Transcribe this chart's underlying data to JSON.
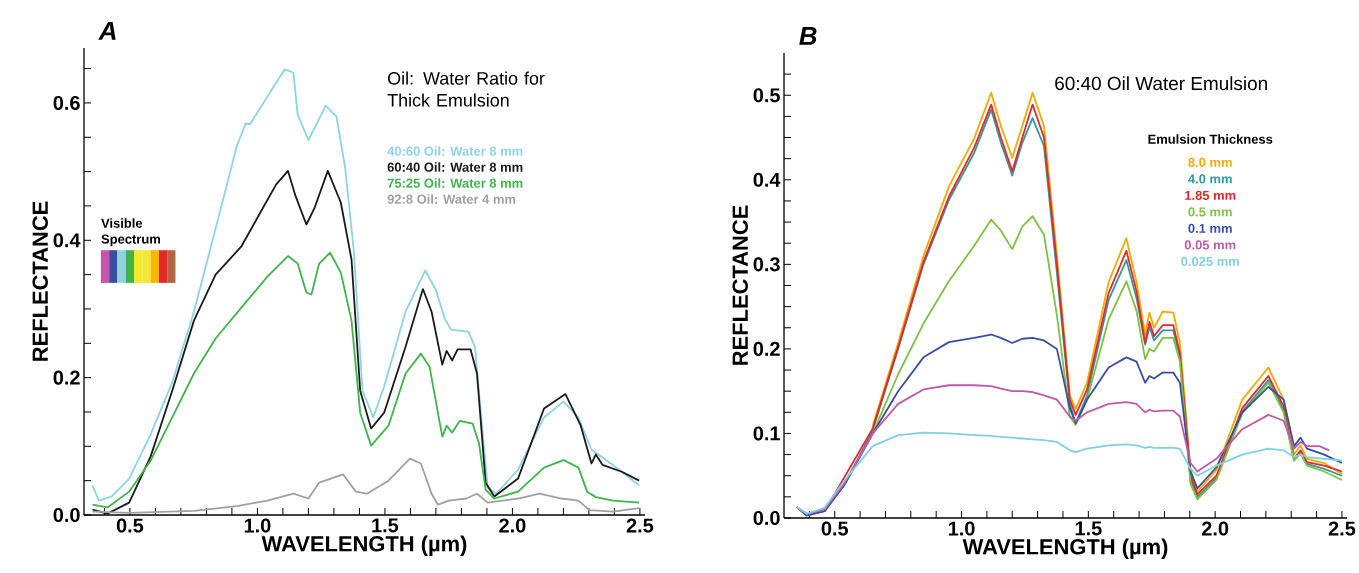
{
  "chart_data": [
    {
      "type": "line",
      "title": "A",
      "xlabel": "WAVELENGTH (µm)",
      "ylabel": "REFLECTANCE",
      "legend_title": "Oil: Water Ratio for Thick Emulsion",
      "legend": "top right",
      "line_style": "solid",
      "annotations": [
        "Visible Spectrum"
      ],
      "xlim": [
        0.32,
        2.52
      ],
      "ylim": [
        0,
        0.68
      ],
      "xticks": [
        {
          "value": 0.4,
          "label": null
        },
        0.5,
        {
          "value": 0.6,
          "label": null
        },
        {
          "value": 0.7,
          "label": null
        },
        {
          "value": 0.8,
          "label": null
        },
        {
          "value": 0.9,
          "label": null
        },
        {
          "value": 1.0,
          "label": "1.0"
        },
        {
          "value": 1.1,
          "label": null
        },
        {
          "value": 1.2,
          "label": null
        },
        {
          "value": 1.3,
          "label": null
        },
        {
          "value": 1.4,
          "label": null
        },
        1.5,
        {
          "value": 1.6,
          "label": null
        },
        {
          "value": 1.7,
          "label": null
        },
        {
          "value": 1.8,
          "label": null
        },
        {
          "value": 1.9,
          "label": null
        },
        {
          "value": 2.0,
          "label": "2.0"
        },
        {
          "value": 2.1,
          "label": null
        },
        {
          "value": 2.2,
          "label": null
        },
        {
          "value": 2.3,
          "label": null
        },
        {
          "value": 2.4,
          "label": null
        },
        2.5
      ],
      "yticks": [
        {
          "value": 0,
          "label": "0.0"
        },
        {
          "value": 0.05,
          "label": null
        },
        {
          "value": 0.1,
          "label": null
        },
        {
          "value": 0.15,
          "label": null
        },
        0.2,
        {
          "value": 0.25,
          "label": null
        },
        {
          "value": 0.3,
          "label": null
        },
        {
          "value": 0.35,
          "label": null
        },
        0.4,
        {
          "value": 0.45,
          "label": null
        },
        {
          "value": 0.5,
          "label": null
        },
        {
          "value": 0.55,
          "label": null
        },
        0.6,
        {
          "value": 0.65,
          "label": null
        }
      ],
      "series": [
        {
          "name": "40:60 Oil: Water 8 mm",
          "color": "#8ed3e3",
          "x": [
            0.353,
            0.378,
            0.429,
            0.497,
            0.581,
            0.666,
            0.751,
            0.836,
            0.92,
            0.954,
            0.971,
            1.039,
            1.107,
            1.141,
            1.158,
            1.2,
            1.225,
            1.268,
            1.31,
            1.344,
            1.378,
            1.412,
            1.454,
            1.497,
            1.581,
            1.658,
            1.7,
            1.734,
            1.759,
            1.827,
            1.853,
            1.903,
            1.937,
            2.022,
            2.124,
            2.2,
            2.259,
            2.31,
            2.361,
            2.429,
            2.497
          ],
          "values": [
            0.043,
            0.021,
            0.027,
            0.053,
            0.117,
            0.193,
            0.296,
            0.417,
            0.538,
            0.57,
            0.569,
            0.609,
            0.649,
            0.644,
            0.583,
            0.546,
            0.564,
            0.596,
            0.58,
            0.506,
            0.385,
            0.181,
            0.142,
            0.187,
            0.296,
            0.356,
            0.328,
            0.286,
            0.27,
            0.267,
            0.245,
            0.04,
            0.031,
            0.066,
            0.142,
            0.165,
            0.142,
            0.095,
            0.082,
            0.063,
            0.043
          ]
        },
        {
          "name": "60:40 Oil: Water 8 mm",
          "color": "#1a1a1a",
          "x": [
            0.353,
            0.412,
            0.497,
            0.581,
            0.666,
            0.751,
            0.836,
            0.937,
            1.005,
            1.073,
            1.12,
            1.149,
            1.192,
            1.225,
            1.276,
            1.327,
            1.369,
            1.403,
            1.446,
            1.497,
            1.581,
            1.649,
            1.683,
            1.725,
            1.742,
            1.764,
            1.785,
            1.836,
            1.861,
            1.895,
            1.929,
            2.022,
            2.124,
            2.208,
            2.268,
            2.31,
            2.327,
            2.353,
            2.429,
            2.497
          ],
          "values": [
            0.008,
            0.002,
            0.018,
            0.085,
            0.181,
            0.283,
            0.35,
            0.391,
            0.436,
            0.481,
            0.501,
            0.465,
            0.423,
            0.448,
            0.501,
            0.455,
            0.372,
            0.181,
            0.126,
            0.149,
            0.245,
            0.329,
            0.296,
            0.219,
            0.239,
            0.225,
            0.241,
            0.241,
            0.206,
            0.047,
            0.027,
            0.053,
            0.155,
            0.176,
            0.13,
            0.075,
            0.088,
            0.073,
            0.063,
            0.05
          ]
        },
        {
          "name": "75:25 Oil: Water 8 mm",
          "color": "#3db54a",
          "x": [
            0.353,
            0.412,
            0.497,
            0.581,
            0.666,
            0.751,
            0.836,
            0.937,
            1.039,
            1.12,
            1.158,
            1.192,
            1.212,
            1.242,
            1.285,
            1.327,
            1.369,
            1.403,
            1.446,
            1.514,
            1.581,
            1.641,
            1.675,
            1.725,
            1.742,
            1.764,
            1.793,
            1.844,
            1.869,
            1.895,
            1.929,
            2.022,
            2.124,
            2.2,
            2.259,
            2.293,
            2.327,
            2.395,
            2.497
          ],
          "values": [
            0.015,
            0.011,
            0.034,
            0.079,
            0.142,
            0.206,
            0.257,
            0.302,
            0.347,
            0.377,
            0.366,
            0.324,
            0.321,
            0.366,
            0.382,
            0.353,
            0.283,
            0.149,
            0.101,
            0.13,
            0.206,
            0.235,
            0.216,
            0.114,
            0.13,
            0.12,
            0.137,
            0.133,
            0.104,
            0.037,
            0.024,
            0.034,
            0.069,
            0.08,
            0.069,
            0.034,
            0.026,
            0.021,
            0.018
          ]
        },
        {
          "name": "92:8 Oil: Water 4 mm",
          "color": "#a0a0a0",
          "x": [
            0.353,
            0.497,
            0.751,
            0.92,
            1.039,
            1.141,
            1.2,
            1.242,
            1.336,
            1.386,
            1.429,
            1.514,
            1.598,
            1.641,
            1.683,
            1.708,
            1.751,
            1.819,
            1.861,
            1.903,
            2.022,
            2.107,
            2.192,
            2.259,
            2.302,
            2.395,
            2.497
          ],
          "values": [
            0.005,
            0.003,
            0.006,
            0.013,
            0.021,
            0.031,
            0.024,
            0.047,
            0.059,
            0.034,
            0.031,
            0.05,
            0.082,
            0.075,
            0.031,
            0.015,
            0.021,
            0.024,
            0.031,
            0.018,
            0.024,
            0.031,
            0.024,
            0.021,
            0.007,
            0.005,
            0.01
          ]
        }
      ]
    },
    {
      "type": "line",
      "title": "B",
      "subtitle": "60:40 Oil Water Emulsion",
      "xlabel": "WAVELENGTH (µm)",
      "ylabel": "REFLECTANCE",
      "legend_title": "Emulsion Thickness",
      "legend": "top right",
      "line_style": "solid",
      "xlim": [
        0.3,
        2.52
      ],
      "ylim": [
        0,
        0.55
      ],
      "xticks": [
        {
          "value": 0.4,
          "label": null
        },
        0.5,
        {
          "value": 0.6,
          "label": null
        },
        {
          "value": 0.7,
          "label": null
        },
        {
          "value": 0.8,
          "label": null
        },
        {
          "value": 0.9,
          "label": null
        },
        {
          "value": 1.0,
          "label": "1.0"
        },
        {
          "value": 1.1,
          "label": null
        },
        {
          "value": 1.2,
          "label": null
        },
        {
          "value": 1.3,
          "label": null
        },
        {
          "value": 1.4,
          "label": null
        },
        1.5,
        {
          "value": 1.6,
          "label": null
        },
        {
          "value": 1.7,
          "label": null
        },
        {
          "value": 1.8,
          "label": null
        },
        {
          "value": 1.9,
          "label": null
        },
        {
          "value": 2.0,
          "label": "2.0"
        },
        {
          "value": 2.1,
          "label": null
        },
        {
          "value": 2.2,
          "label": null
        },
        {
          "value": 2.3,
          "label": null
        },
        {
          "value": 2.4,
          "label": null
        },
        2.5
      ],
      "yticks": [
        {
          "value": 0,
          "label": "0.0"
        },
        {
          "value": 0.025,
          "label": null
        },
        0.1,
        {
          "value": 0.05,
          "label": null
        },
        {
          "value": 0.075,
          "label": null
        },
        {
          "value": 0.125,
          "label": null
        },
        {
          "value": 0.15,
          "label": null
        },
        {
          "value": 0.175,
          "label": null
        },
        0.2,
        {
          "value": 0.225,
          "label": null
        },
        {
          "value": 0.25,
          "label": null
        },
        {
          "value": 0.275,
          "label": null
        },
        0.3,
        {
          "value": 0.325,
          "label": null
        },
        {
          "value": 0.35,
          "label": null
        },
        {
          "value": 0.375,
          "label": null
        },
        0.4,
        {
          "value": 0.425,
          "label": null
        },
        {
          "value": 0.45,
          "label": null
        },
        {
          "value": 0.475,
          "label": null
        },
        0.5,
        {
          "value": 0.525,
          "label": null
        }
      ],
      "x": [
        0.35,
        0.39,
        0.46,
        0.54,
        0.65,
        0.75,
        0.85,
        0.95,
        1.05,
        1.117,
        1.155,
        1.2,
        1.24,
        1.28,
        1.325,
        1.376,
        1.427,
        1.45,
        1.495,
        1.58,
        1.65,
        1.69,
        1.724,
        1.741,
        1.759,
        1.793,
        1.835,
        1.861,
        1.903,
        1.93,
        2.005,
        2.107,
        2.21,
        2.27,
        2.311,
        2.337,
        2.362,
        2.43,
        2.5
      ],
      "series": [
        {
          "name": "8.0 mm",
          "color": "#f2a900",
          "values": [
            null,
            null,
            null,
            null,
            0.109,
            0.207,
            0.31,
            0.392,
            0.449,
            0.503,
            0.464,
            0.426,
            0.464,
            0.503,
            0.464,
            0.31,
            0.145,
            0.129,
            0.16,
            0.279,
            0.331,
            0.279,
            0.217,
            0.243,
            0.225,
            0.244,
            0.243,
            0.207,
            0.057,
            0.031,
            0.057,
            0.14,
            0.178,
            0.14,
            0.075,
            0.086,
            0.07,
            0.065,
            0.052
          ]
        },
        {
          "name": "4.0 mm",
          "color": "#2f9a9e",
          "values": [
            0.013,
            0.003,
            0.008,
            0.04,
            0.104,
            0.2,
            0.3,
            0.376,
            0.432,
            0.483,
            0.444,
            0.405,
            0.444,
            0.473,
            0.44,
            0.29,
            0.135,
            0.112,
            0.145,
            0.258,
            0.305,
            0.26,
            0.205,
            0.226,
            0.21,
            0.222,
            0.222,
            0.19,
            0.045,
            0.025,
            0.047,
            0.126,
            0.163,
            0.128,
            0.068,
            0.078,
            0.064,
            0.058,
            0.05
          ]
        },
        {
          "name": "1.85 mm",
          "color": "#e8262a",
          "values": [
            null,
            null,
            0.008,
            null,
            0.106,
            0.202,
            0.303,
            0.38,
            0.438,
            0.489,
            0.45,
            0.41,
            0.45,
            0.489,
            0.45,
            0.3,
            0.14,
            0.122,
            0.152,
            0.266,
            0.316,
            0.268,
            0.207,
            0.232,
            0.215,
            0.228,
            0.228,
            0.195,
            0.05,
            0.028,
            0.05,
            0.13,
            0.168,
            0.132,
            0.07,
            0.08,
            0.066,
            0.062,
            0.055
          ]
        },
        {
          "name": "0.5 mm",
          "color": "#7dc242",
          "values": [
            null,
            null,
            null,
            0.04,
            0.1,
            0.17,
            0.23,
            0.28,
            0.322,
            0.353,
            0.34,
            0.318,
            0.345,
            0.357,
            0.335,
            0.24,
            0.12,
            0.11,
            0.14,
            0.235,
            0.28,
            0.245,
            0.188,
            0.2,
            0.197,
            0.213,
            0.213,
            0.185,
            0.04,
            0.022,
            0.045,
            0.124,
            0.16,
            0.125,
            0.068,
            0.076,
            0.062,
            0.055,
            0.045
          ]
        },
        {
          "name": "0.1 mm",
          "color": "#3a4ea0",
          "values": [
            0.013,
            0.003,
            0.008,
            0.04,
            0.1,
            0.15,
            0.19,
            0.208,
            0.213,
            0.217,
            0.213,
            0.207,
            0.212,
            0.213,
            0.21,
            0.2,
            0.13,
            0.112,
            0.14,
            0.178,
            0.19,
            0.185,
            0.16,
            0.168,
            0.165,
            0.172,
            0.172,
            0.16,
            0.055,
            0.035,
            0.06,
            0.125,
            0.155,
            0.14,
            0.085,
            0.095,
            0.082,
            0.075,
            0.065
          ]
        },
        {
          "name": "0.05 mm",
          "color": "#c05aa8",
          "x": [
            0.35,
            0.39,
            0.46,
            0.54,
            0.65,
            0.75,
            0.85,
            0.95,
            1.05,
            1.117,
            1.155,
            1.2,
            1.24,
            1.28,
            1.325,
            1.376,
            1.427,
            1.45,
            1.495,
            1.58,
            1.65,
            1.69,
            1.724,
            1.741,
            1.759,
            1.793,
            1.835,
            1.861,
            1.903,
            1.93,
            2.005,
            2.107,
            2.21,
            2.27,
            2.311,
            2.337,
            2.362,
            2.41,
            2.45
          ],
          "values": [
            0.013,
            0.005,
            0.01,
            0.042,
            0.1,
            0.135,
            0.152,
            0.157,
            0.157,
            0.156,
            0.153,
            0.15,
            0.15,
            0.149,
            0.145,
            0.14,
            0.12,
            0.115,
            0.125,
            0.135,
            0.137,
            0.135,
            0.125,
            0.128,
            0.126,
            0.127,
            0.127,
            0.12,
            0.065,
            0.055,
            0.07,
            0.105,
            0.122,
            0.115,
            0.082,
            0.09,
            0.085,
            0.085,
            0.08
          ]
        },
        {
          "name": "0.025 mm",
          "color": "#7fd0e0",
          "values": [
            0.013,
            0.005,
            0.012,
            0.045,
            0.085,
            0.098,
            0.101,
            0.1,
            0.098,
            0.097,
            0.096,
            0.095,
            0.094,
            0.093,
            0.092,
            0.09,
            0.08,
            0.078,
            0.082,
            0.086,
            0.087,
            0.086,
            0.083,
            0.084,
            0.083,
            0.083,
            0.083,
            0.082,
            0.058,
            0.05,
            0.062,
            0.075,
            0.082,
            0.08,
            0.072,
            0.075,
            0.072,
            0.07,
            0.068
          ]
        }
      ]
    }
  ]
}
